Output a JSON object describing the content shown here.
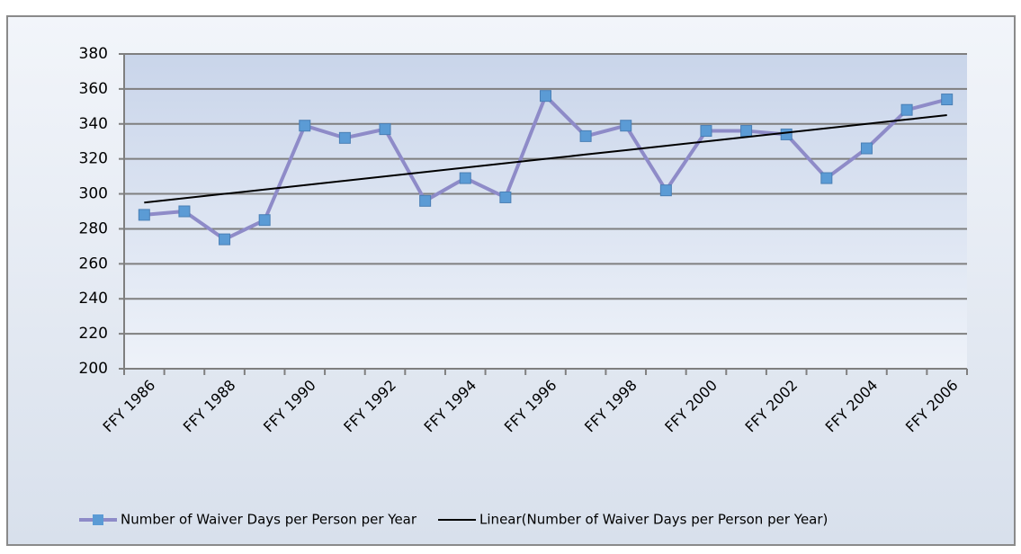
{
  "chart_data": {
    "type": "line",
    "categories": [
      "FFY 1986",
      null,
      "FFY 1988",
      null,
      "FFY 1990",
      null,
      "FFY 1992",
      null,
      "FFY 1994",
      null,
      "FFY 1996",
      null,
      "FFY 1998",
      null,
      "FFY 2000",
      null,
      "FFY 2002",
      null,
      "FFY 2004",
      null,
      "FFY 2006"
    ],
    "series": [
      {
        "name": "Number of Waiver Days per Person per Year",
        "color": "#8e8bc8",
        "marker_color": "#5b9bd5",
        "marker": "square",
        "values": [
          288,
          290,
          274,
          285,
          339,
          332,
          337,
          296,
          309,
          298,
          356,
          333,
          339,
          302,
          336,
          336,
          334,
          309,
          326,
          348,
          354
        ]
      },
      {
        "name": "Linear(Number of Waiver Days per Person per Year)",
        "color": "#000000",
        "marker": "none",
        "values": [
          295,
          297.5,
          300,
          302.5,
          305,
          307.5,
          310,
          312.5,
          315,
          317.5,
          320,
          322.5,
          325,
          327.5,
          330,
          332.5,
          335,
          337.5,
          340,
          342.5,
          345
        ]
      }
    ],
    "ylim": [
      200,
      380
    ],
    "yticks": [
      200,
      220,
      240,
      260,
      280,
      300,
      320,
      340,
      360,
      380
    ],
    "grid": true,
    "legend": "bottom"
  }
}
